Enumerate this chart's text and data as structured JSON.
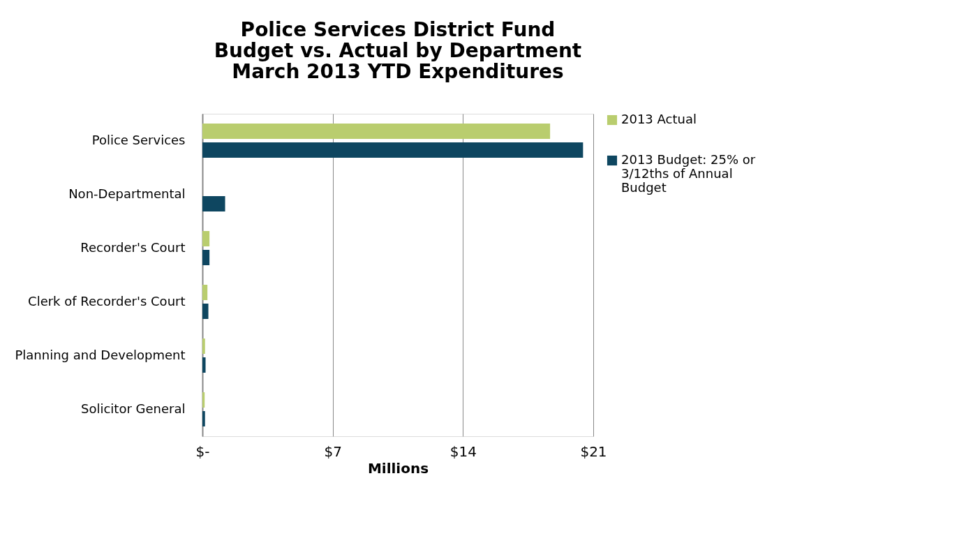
{
  "chart_data": {
    "type": "bar",
    "orientation": "horizontal",
    "title": "Police Services District Fund\nBudget vs. Actual by Department\nMarch 2013 YTD Expenditures",
    "xlabel": "Millions",
    "categories": [
      "Police Services",
      "Non-Departmental",
      "Recorder's Court",
      "Clerk of Recorder's Court",
      "Planning and Development",
      "Solicitor General"
    ],
    "series": [
      {
        "name": "2013 Actual",
        "color": "#b9cd6e",
        "values": [
          18.68,
          null,
          0.38,
          0.27,
          0.14,
          0.12
        ]
      },
      {
        "name": "2013 Budget: 25% or 3/12ths of Annual Budget",
        "color": "#0e4660",
        "values": [
          20.45,
          1.22,
          0.38,
          0.32,
          0.17,
          0.14
        ]
      }
    ],
    "xlim": [
      0,
      21
    ],
    "xticks": [
      {
        "value": 0,
        "label": "$-"
      },
      {
        "value": 7,
        "label": "$7"
      },
      {
        "value": 14,
        "label": "$14"
      },
      {
        "value": 21,
        "label": "$21"
      }
    ],
    "grid": "x",
    "legend": "right"
  }
}
